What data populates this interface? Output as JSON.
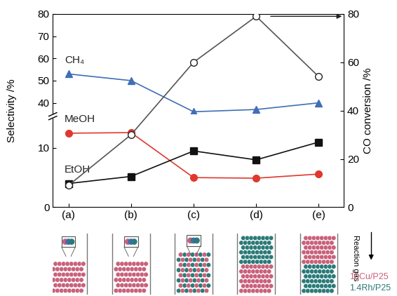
{
  "chart_data": {
    "type": "line",
    "categories": [
      "(a)",
      "(b)",
      "(c)",
      "(d)",
      "(e)"
    ],
    "ylabel": "Selectivity /%",
    "y2label": "CO conversion /%",
    "ylim": [
      0,
      80
    ],
    "ybreak": [
      15,
      35
    ],
    "yticks": [
      0,
      10,
      40,
      50,
      60,
      70,
      80
    ],
    "y2lim": [
      0,
      80
    ],
    "y2ticks": [
      0,
      20,
      40,
      60,
      80
    ],
    "series": [
      {
        "name": "CH₄",
        "color": "#3f6fb6",
        "marker": "triangle",
        "values": [
          53,
          50,
          36,
          37,
          40
        ]
      },
      {
        "name": "MeOH",
        "color": "#e0382f",
        "marker": "circle",
        "values": [
          12.5,
          12.6,
          5.0,
          4.9,
          5.6
        ]
      },
      {
        "name": "EtOH",
        "color": "#111111",
        "marker": "square",
        "values": [
          4.0,
          5.2,
          9.5,
          8.0,
          11.0
        ]
      },
      {
        "axis": "y2",
        "color": "#555555",
        "marker": "hollow",
        "values": [
          9,
          30,
          60,
          79,
          54
        ]
      }
    ],
    "schematic": {
      "gas_label": "Reaction gas",
      "catalysts": [
        {
          "name": "10Cu/P25",
          "color": "#c9607a"
        },
        {
          "name": "1.4Rh/P25",
          "color": "#2a7a78"
        }
      ]
    }
  }
}
